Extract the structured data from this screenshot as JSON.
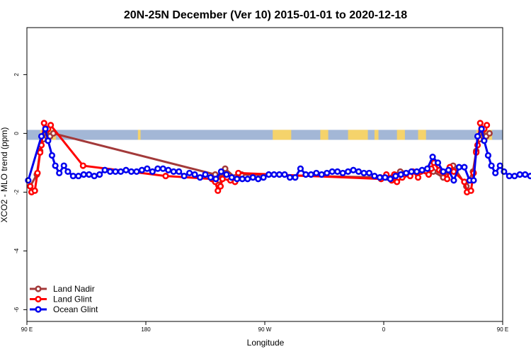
{
  "chart_data": {
    "type": "line",
    "title": "20N-25N December (Ver 10)   2015-01-01 to 2020-12-18",
    "xlabel": "Longitude",
    "ylabel": "XCO2 - MLO trend (ppm)",
    "xlim": [
      90,
      450
    ],
    "ylim": [
      -6.4,
      3.6
    ],
    "x_ticks": [
      {
        "value": 90,
        "label": "90 E"
      },
      {
        "value": 180,
        "label": "180"
      },
      {
        "value": 270,
        "label": "90 W"
      },
      {
        "value": 360,
        "label": "0"
      },
      {
        "value": 450,
        "label": "90 E"
      },
      {
        "value": 540,
        "label": "180"
      }
    ],
    "y_ticks": [
      {
        "value": 2,
        "label": "2"
      },
      {
        "value": 0,
        "label": "0"
      },
      {
        "value": -2,
        "label": "-2"
      },
      {
        "value": -4,
        "label": "-4"
      },
      {
        "value": -6,
        "label": "-6"
      }
    ],
    "legend_position": "bottom-left",
    "background_band": {
      "y_center": 0,
      "ocean_color": "#a3b7d6",
      "land_color": "#f5d36b"
    },
    "series": [
      {
        "name": "Land Nadir",
        "color": "#a33a3a",
        "points": [
          [
            92.5,
            -1.8
          ],
          [
            97.5,
            -1.4
          ],
          [
            100,
            -0.6
          ],
          [
            102.5,
            -0.2
          ],
          [
            105,
            0.1
          ],
          [
            107.5,
            -0.1
          ],
          [
            110,
            0.0
          ],
          [
            232.5,
            -1.4
          ],
          [
            235,
            -1.6
          ],
          [
            237.5,
            -1.5
          ],
          [
            240,
            -1.2
          ],
          [
            247.5,
            -1.5
          ],
          [
            252.5,
            -1.4
          ],
          [
            357.5,
            -1.5
          ],
          [
            362.5,
            -1.5
          ],
          [
            372.5,
            -1.3
          ],
          [
            392.5,
            -1.3
          ],
          [
            397.5,
            -1.3
          ],
          [
            405,
            -1.5
          ],
          [
            412.5,
            -1.1
          ],
          [
            422.5,
            -1.8
          ],
          [
            427.5,
            -1.3
          ],
          [
            430,
            -0.6
          ],
          [
            432.5,
            -0.2
          ],
          [
            435,
            0.1
          ],
          [
            437.5,
            -0.1
          ],
          [
            440,
            0.0
          ]
        ]
      },
      {
        "name": "Land Glint",
        "color": "#ff0000",
        "points": [
          [
            92.5,
            -1.8
          ],
          [
            93.5,
            -2.0
          ],
          [
            96,
            -1.95
          ],
          [
            98,
            -1.35
          ],
          [
            100,
            -0.65
          ],
          [
            101,
            -0.4
          ],
          [
            103,
            0.35
          ],
          [
            106,
            0.15
          ],
          [
            108,
            0.28
          ],
          [
            132.5,
            -1.1
          ],
          [
            195,
            -1.45
          ],
          [
            230,
            -1.55
          ],
          [
            232.5,
            -1.65
          ],
          [
            234.5,
            -1.95
          ],
          [
            236.5,
            -1.8
          ],
          [
            238,
            -1.55
          ],
          [
            244,
            -1.6
          ],
          [
            247.5,
            -1.65
          ],
          [
            250,
            -1.35
          ],
          [
            358,
            -1.55
          ],
          [
            362,
            -1.4
          ],
          [
            366,
            -1.6
          ],
          [
            368,
            -1.4
          ],
          [
            370,
            -1.65
          ],
          [
            374,
            -1.5
          ],
          [
            376,
            -1.4
          ],
          [
            380,
            -1.45
          ],
          [
            382,
            -1.3
          ],
          [
            386,
            -1.5
          ],
          [
            388,
            -1.3
          ],
          [
            394,
            -1.4
          ],
          [
            396,
            -1.2
          ],
          [
            398,
            -1.0
          ],
          [
            402,
            -1.25
          ],
          [
            404,
            -1.3
          ],
          [
            408,
            -1.55
          ],
          [
            410,
            -1.15
          ],
          [
            413,
            -1.3
          ],
          [
            421,
            -1.65
          ],
          [
            423,
            -2.0
          ],
          [
            426,
            -1.95
          ],
          [
            428,
            -1.35
          ],
          [
            430,
            -0.65
          ],
          [
            431,
            -0.4
          ],
          [
            433,
            0.35
          ],
          [
            436,
            0.15
          ],
          [
            438,
            0.28
          ]
        ]
      },
      {
        "name": "Ocean Glint",
        "color": "#0000ee",
        "points": [
          [
            91,
            -1.6
          ],
          [
            101,
            -0.1
          ],
          [
            104,
            0.15
          ],
          [
            106,
            -0.25
          ],
          [
            109,
            -0.75
          ],
          [
            111.5,
            -1.1
          ],
          [
            114.5,
            -1.35
          ],
          [
            118,
            -1.1
          ],
          [
            121,
            -1.3
          ],
          [
            125,
            -1.45
          ],
          [
            129,
            -1.45
          ],
          [
            133,
            -1.4
          ],
          [
            137,
            -1.4
          ],
          [
            141,
            -1.45
          ],
          [
            145,
            -1.4
          ],
          [
            149,
            -1.25
          ],
          [
            153,
            -1.3
          ],
          [
            157,
            -1.3
          ],
          [
            161,
            -1.3
          ],
          [
            165,
            -1.25
          ],
          [
            169,
            -1.3
          ],
          [
            173,
            -1.3
          ],
          [
            177,
            -1.25
          ],
          [
            181,
            -1.2
          ],
          [
            185,
            -1.3
          ],
          [
            189,
            -1.2
          ],
          [
            193,
            -1.2
          ],
          [
            197,
            -1.25
          ],
          [
            201,
            -1.3
          ],
          [
            205,
            -1.3
          ],
          [
            209,
            -1.45
          ],
          [
            213,
            -1.35
          ],
          [
            217,
            -1.4
          ],
          [
            221,
            -1.5
          ],
          [
            225,
            -1.4
          ],
          [
            229,
            -1.5
          ],
          [
            233,
            -1.55
          ],
          [
            237,
            -1.3
          ],
          [
            241,
            -1.4
          ],
          [
            245,
            -1.5
          ],
          [
            249,
            -1.55
          ],
          [
            253,
            -1.55
          ],
          [
            257,
            -1.55
          ],
          [
            261,
            -1.5
          ],
          [
            265,
            -1.55
          ],
          [
            269,
            -1.5
          ],
          [
            273,
            -1.4
          ],
          [
            277,
            -1.4
          ],
          [
            281,
            -1.4
          ],
          [
            285,
            -1.4
          ],
          [
            289,
            -1.5
          ],
          [
            293,
            -1.5
          ],
          [
            297,
            -1.2
          ],
          [
            301,
            -1.4
          ],
          [
            305,
            -1.4
          ],
          [
            309,
            -1.35
          ],
          [
            313,
            -1.4
          ],
          [
            317,
            -1.35
          ],
          [
            321,
            -1.3
          ],
          [
            325,
            -1.3
          ],
          [
            329,
            -1.35
          ],
          [
            333,
            -1.3
          ],
          [
            337,
            -1.25
          ],
          [
            341,
            -1.3
          ],
          [
            345,
            -1.35
          ],
          [
            349,
            -1.35
          ],
          [
            353,
            -1.45
          ],
          [
            357,
            -1.5
          ],
          [
            361,
            -1.5
          ],
          [
            365,
            -1.55
          ],
          [
            369,
            -1.45
          ],
          [
            373,
            -1.4
          ],
          [
            377,
            -1.35
          ],
          [
            381,
            -1.3
          ],
          [
            385,
            -1.3
          ],
          [
            389,
            -1.25
          ],
          [
            393,
            -1.2
          ],
          [
            397,
            -0.8
          ],
          [
            401,
            -1.0
          ],
          [
            405,
            -1.3
          ],
          [
            409,
            -1.25
          ],
          [
            413,
            -1.6
          ],
          [
            417,
            -1.15
          ],
          [
            421,
            -1.15
          ],
          [
            425,
            -1.6
          ],
          [
            428,
            -1.6
          ],
          [
            431,
            -0.1
          ],
          [
            434,
            0.15
          ],
          [
            436,
            -0.25
          ],
          [
            439,
            -0.75
          ],
          [
            441.5,
            -1.1
          ],
          [
            444.5,
            -1.35
          ],
          [
            448,
            -1.1
          ],
          [
            451,
            -1.3
          ],
          [
            455,
            -1.45
          ],
          [
            459,
            -1.45
          ],
          [
            463,
            -1.4
          ],
          [
            467,
            -1.4
          ],
          [
            471,
            -1.45
          ],
          [
            475,
            -1.4
          ],
          [
            479,
            -1.4
          ]
        ]
      }
    ]
  }
}
